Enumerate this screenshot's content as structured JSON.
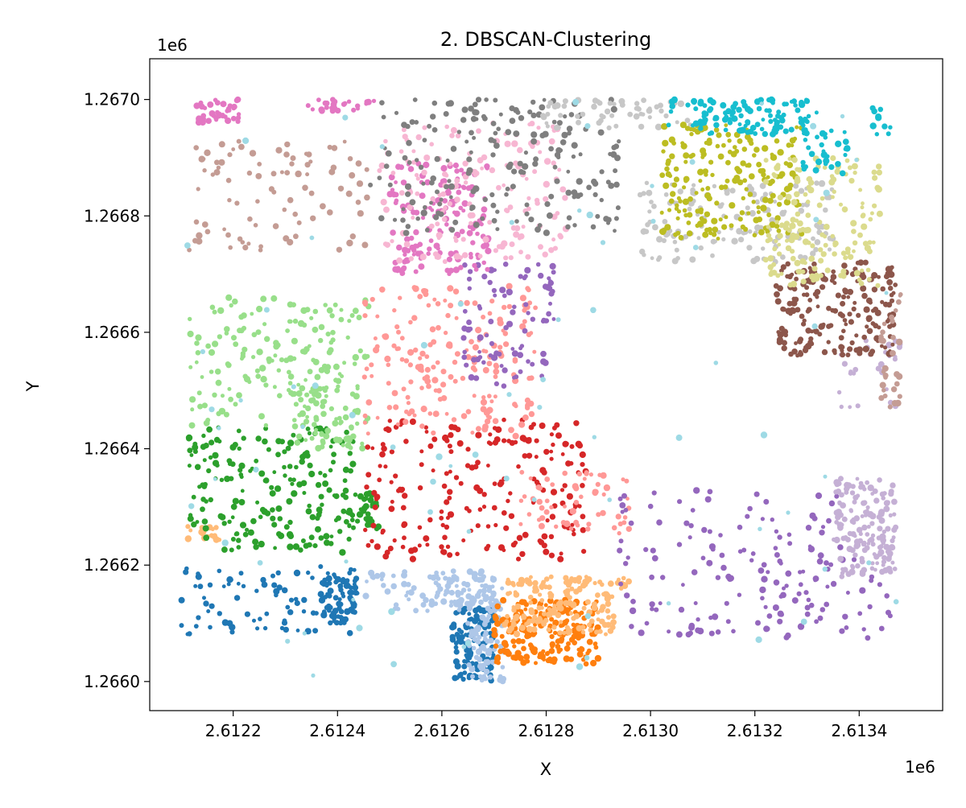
{
  "chart_data": {
    "type": "scatter",
    "title": "2. DBSCAN-Clustering",
    "xlabel": "X",
    "ylabel": "Y",
    "x_offset_label": "1e6",
    "y_offset_label": "1e6",
    "xlim": [
      2612040,
      2613560
    ],
    "ylim": [
      1265950,
      1267070
    ],
    "x_ticks": [
      2612200,
      2612400,
      2612600,
      2612800,
      2613000,
      2613200,
      2613400
    ],
    "x_tick_labels": [
      "2.6122",
      "2.6124",
      "2.6126",
      "2.6128",
      "2.6130",
      "2.6132",
      "2.6134"
    ],
    "y_ticks": [
      1266000,
      1266200,
      1266400,
      1266600,
      1266800,
      1267000
    ],
    "y_tick_labels": [
      "1.2660",
      "1.2662",
      "1.2664",
      "1.2666",
      "1.2668",
      "1.2670"
    ],
    "grid": false,
    "legend": "none",
    "clusters": [
      {
        "color": "#1f77b4",
        "regions": [
          [
            2612100,
            2612450,
            1266080,
            1266200,
            90
          ],
          [
            2612620,
            2612700,
            1266000,
            1266130,
            120
          ],
          [
            2612370,
            2612440,
            1266100,
            1266190,
            60
          ]
        ]
      },
      {
        "color": "#aec7e8",
        "regions": [
          [
            2612650,
            2612720,
            1266000,
            1266140,
            80
          ],
          [
            2612450,
            2612700,
            1266120,
            1266190,
            60
          ],
          [
            2612580,
            2612720,
            1266130,
            1266180,
            60
          ]
        ]
      },
      {
        "color": "#ff7f0e",
        "regions": [
          [
            2612700,
            2612900,
            1266030,
            1266140,
            220
          ]
        ]
      },
      {
        "color": "#ffbb78",
        "regions": [
          [
            2612720,
            2612930,
            1266080,
            1266160,
            120
          ],
          [
            2612700,
            2612960,
            1266160,
            1266180,
            50
          ],
          [
            2612110,
            2612180,
            1266240,
            1266270,
            20
          ]
        ]
      },
      {
        "color": "#2ca02c",
        "regions": [
          [
            2612110,
            2612430,
            1266220,
            1266440,
            200
          ],
          [
            2612410,
            2612480,
            1266260,
            1266330,
            40
          ]
        ]
      },
      {
        "color": "#98df8a",
        "regions": [
          [
            2612110,
            2612460,
            1266440,
            1266660,
            180
          ],
          [
            2612300,
            2612460,
            1266400,
            1266520,
            60
          ]
        ]
      },
      {
        "color": "#d62728",
        "regions": [
          [
            2612450,
            2612880,
            1266210,
            1266450,
            220
          ]
        ]
      },
      {
        "color": "#ff9896",
        "regions": [
          [
            2612450,
            2612780,
            1266420,
            1266680,
            200
          ],
          [
            2612750,
            2612960,
            1266250,
            1266360,
            60
          ]
        ]
      },
      {
        "color": "#9467bd",
        "regions": [
          [
            2612640,
            2612820,
            1266500,
            1266720,
            90
          ],
          [
            2612940,
            2613380,
            1266080,
            1266330,
            130
          ],
          [
            2613200,
            2613460,
            1266060,
            1266220,
            40
          ]
        ]
      },
      {
        "color": "#c5b0d5",
        "regions": [
          [
            2613350,
            2613470,
            1266180,
            1266350,
            160
          ],
          [
            2613360,
            2613480,
            1266470,
            1266600,
            30
          ]
        ]
      },
      {
        "color": "#8c564b",
        "regions": [
          [
            2613240,
            2613470,
            1266560,
            1266720,
            200
          ]
        ]
      },
      {
        "color": "#c49c94",
        "regions": [
          [
            2612110,
            2612460,
            1266740,
            1266930,
            90
          ],
          [
            2613440,
            2613480,
            1266460,
            1266680,
            30
          ]
        ]
      },
      {
        "color": "#e377c2",
        "regions": [
          [
            2612500,
            2612690,
            1266700,
            1266890,
            160
          ],
          [
            2612130,
            2612230,
            1266960,
            1267000,
            40
          ],
          [
            2612340,
            2612470,
            1266980,
            1267000,
            25
          ]
        ]
      },
      {
        "color": "#f7b6d2",
        "regions": [
          [
            2612480,
            2612840,
            1266720,
            1266960,
            160
          ]
        ]
      },
      {
        "color": "#7f7f7f",
        "regions": [
          [
            2612460,
            2612950,
            1266770,
            1267000,
            200
          ]
        ]
      },
      {
        "color": "#c7c7c7",
        "regions": [
          [
            2612790,
            2613080,
            1266950,
            1267000,
            60
          ],
          [
            2612980,
            2613350,
            1266720,
            1266860,
            150
          ]
        ]
      },
      {
        "color": "#bcbd22",
        "regions": [
          [
            2613020,
            2613290,
            1266760,
            1266960,
            200
          ]
        ]
      },
      {
        "color": "#dbdb8d",
        "regions": [
          [
            2613220,
            2613440,
            1266680,
            1266900,
            160
          ]
        ]
      },
      {
        "color": "#17becf",
        "regions": [
          [
            2613030,
            2613320,
            1266940,
            1267000,
            120
          ],
          [
            2613290,
            2613380,
            1266870,
            1266950,
            30
          ],
          [
            2613420,
            2613460,
            1266940,
            1266990,
            10
          ]
        ]
      },
      {
        "color": "#9edae5",
        "regions": [
          [
            2612100,
            2613480,
            1266000,
            1267000,
            80
          ]
        ]
      }
    ]
  }
}
